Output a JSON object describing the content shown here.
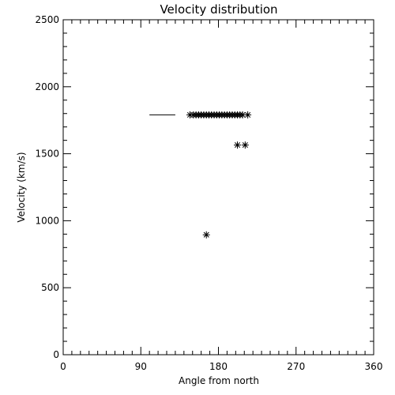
{
  "chart_data": {
    "type": "scatter",
    "title": "Velocity distribution",
    "xlabel": "Angle from north",
    "ylabel": "Velocity (km/s)",
    "xlim": [
      0,
      360
    ],
    "ylim": [
      0,
      2500
    ],
    "xticks": [
      0,
      90,
      180,
      270,
      360
    ],
    "yticks": [
      0,
      500,
      1000,
      1500,
      2000,
      2500
    ],
    "x_minor_step": 10,
    "y_minor_step": 100,
    "grid": false,
    "marker": "asterisk",
    "line_segments": [
      {
        "x": [
          100,
          130
        ],
        "y": [
          1790,
          1790
        ]
      }
    ],
    "points": [
      {
        "x": 147,
        "y": 1790
      },
      {
        "x": 151,
        "y": 1790
      },
      {
        "x": 154,
        "y": 1790
      },
      {
        "x": 157,
        "y": 1790
      },
      {
        "x": 160,
        "y": 1790
      },
      {
        "x": 163,
        "y": 1790
      },
      {
        "x": 166,
        "y": 1790
      },
      {
        "x": 169,
        "y": 1790
      },
      {
        "x": 172,
        "y": 1790
      },
      {
        "x": 175,
        "y": 1790
      },
      {
        "x": 178,
        "y": 1790
      },
      {
        "x": 181,
        "y": 1790
      },
      {
        "x": 184,
        "y": 1790
      },
      {
        "x": 187,
        "y": 1790
      },
      {
        "x": 190,
        "y": 1790
      },
      {
        "x": 193,
        "y": 1790
      },
      {
        "x": 196,
        "y": 1790
      },
      {
        "x": 199,
        "y": 1790
      },
      {
        "x": 202,
        "y": 1790
      },
      {
        "x": 205,
        "y": 1790
      },
      {
        "x": 208,
        "y": 1790
      },
      {
        "x": 214,
        "y": 1790
      },
      {
        "x": 202,
        "y": 1565
      },
      {
        "x": 211,
        "y": 1565
      },
      {
        "x": 166,
        "y": 895
      }
    ]
  }
}
